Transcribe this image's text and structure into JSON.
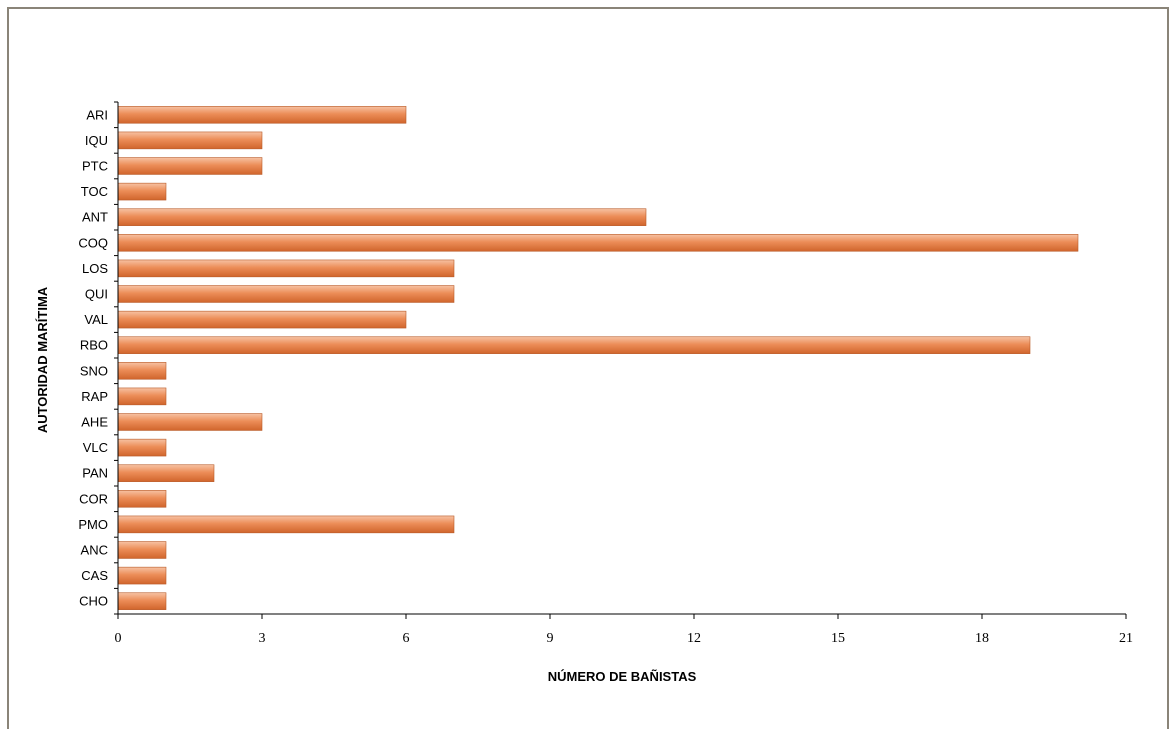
{
  "chart_data": {
    "type": "bar",
    "orientation": "horizontal",
    "title": "",
    "xlabel": "NÚMERO DE BAÑISTAS",
    "ylabel": "AUTORIDAD MARÍTIMA",
    "categories": [
      "ARI",
      "IQU",
      "PTC",
      "TOC",
      "ANT",
      "COQ",
      "LOS",
      "QUI",
      "VAL",
      "RBO",
      "SNO",
      "RAP",
      "AHE",
      "VLC",
      "PAN",
      "COR",
      "PMO",
      "ANC",
      "CAS",
      "CHO"
    ],
    "values": [
      6,
      3,
      3,
      1,
      11,
      20,
      7,
      7,
      6,
      19,
      1,
      1,
      3,
      1,
      2,
      1,
      7,
      1,
      1,
      1
    ],
    "xlim": [
      0,
      21
    ],
    "xticks": [
      0,
      3,
      6,
      9,
      12,
      15,
      18,
      21
    ],
    "grid": false,
    "legend": "none",
    "colors": {
      "bar_top": "#f7c2a3",
      "bar_mid": "#ec8d58",
      "bar_bottom": "#d0652c",
      "bar_edge": "#b85a28"
    }
  }
}
